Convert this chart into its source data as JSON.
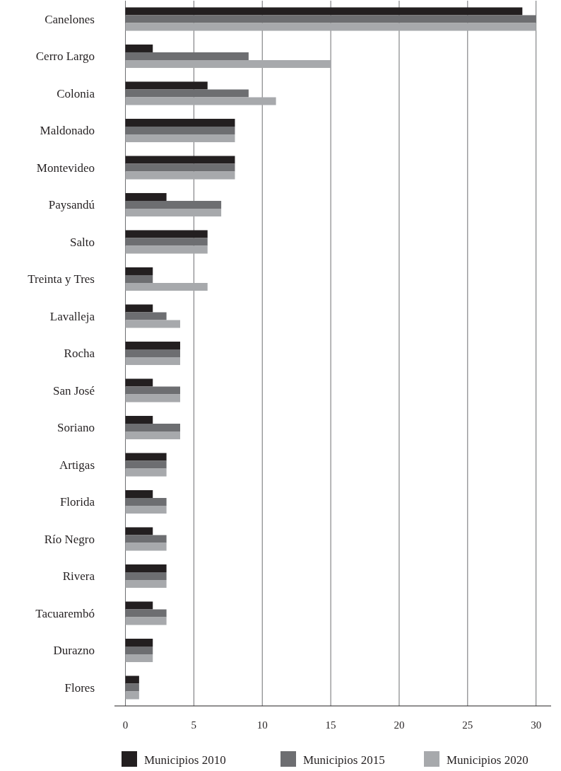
{
  "chart_data": {
    "type": "bar",
    "orientation": "horizontal",
    "categories": [
      "Canelones",
      "Cerro Largo",
      "Colonia",
      "Maldonado",
      "Montevideo",
      "Paysandú",
      "Salto",
      "Treinta y Tres",
      "Lavalleja",
      "Rocha",
      "San José",
      "Soriano",
      "Artigas",
      "Florida",
      "Río Negro",
      "Rivera",
      "Tacuarembó",
      "Durazno",
      "Flores"
    ],
    "series": [
      {
        "name": "Municipios 2010",
        "color": "#231f20",
        "values": [
          29,
          2,
          6,
          8,
          8,
          3,
          6,
          2,
          2,
          4,
          2,
          2,
          3,
          2,
          2,
          3,
          2,
          2,
          1
        ]
      },
      {
        "name": "Municipios 2015",
        "color": "#6d6e71",
        "values": [
          30,
          9,
          9,
          8,
          8,
          7,
          6,
          2,
          3,
          4,
          4,
          4,
          3,
          3,
          3,
          3,
          3,
          2,
          1
        ]
      },
      {
        "name": "Municipios 2020",
        "color": "#a7a9ac",
        "values": [
          30,
          15,
          11,
          8,
          8,
          7,
          6,
          6,
          4,
          4,
          4,
          4,
          3,
          3,
          3,
          3,
          3,
          2,
          1
        ]
      }
    ],
    "xlim": [
      -0.8,
      31.1
    ],
    "xticks": [
      0,
      5,
      10,
      15,
      20,
      25,
      30
    ],
    "grid": "x",
    "legend": "bottom"
  }
}
